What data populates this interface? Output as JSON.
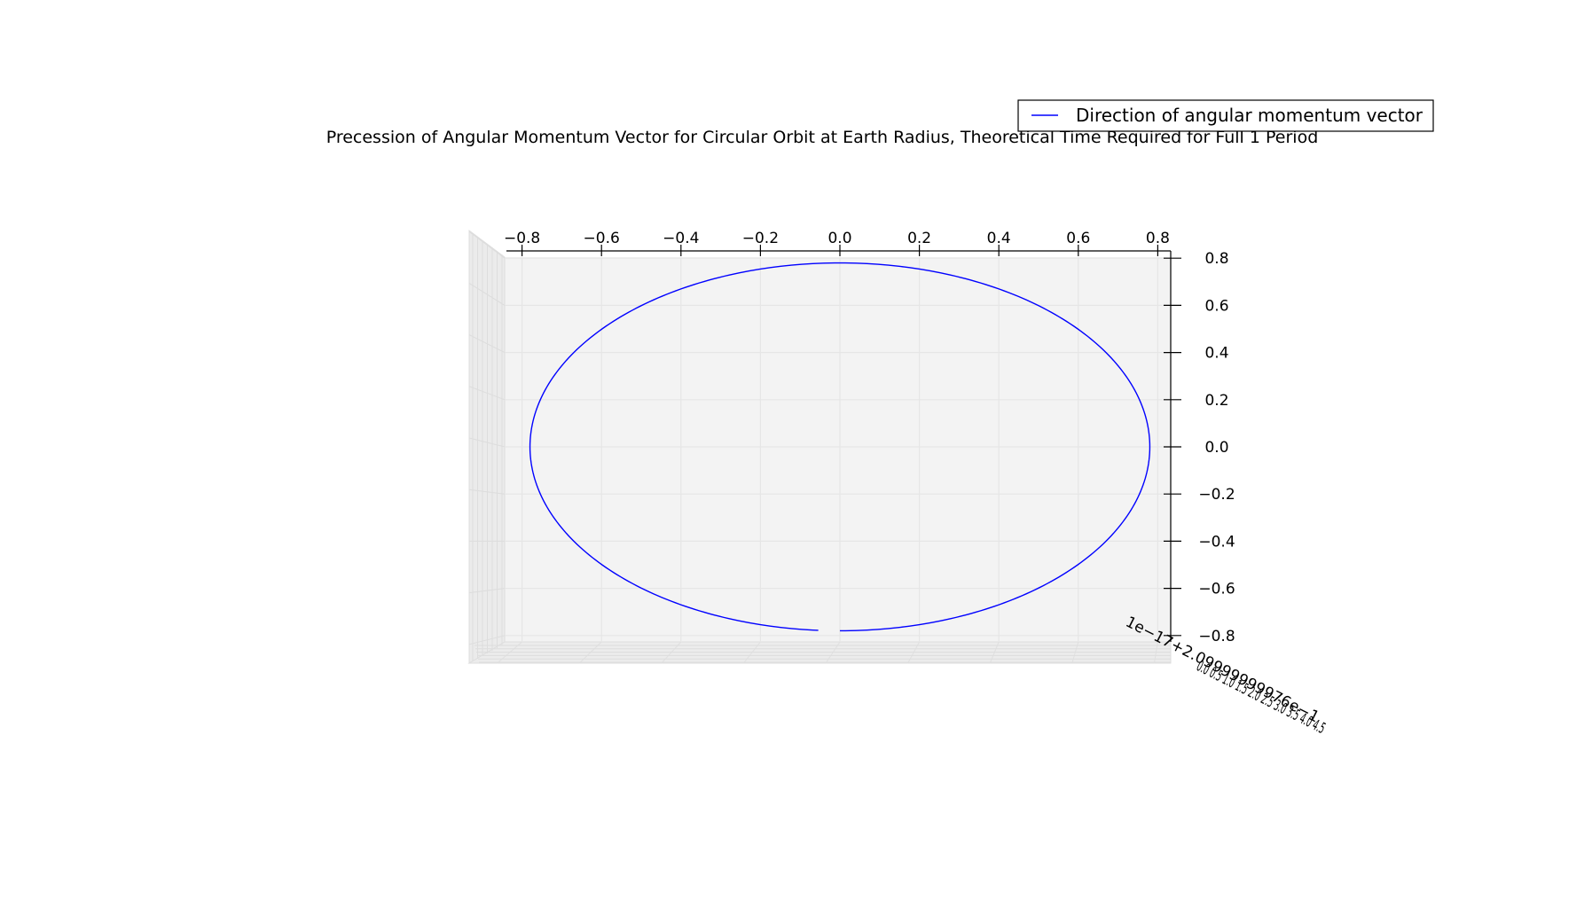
{
  "chart_data": {
    "type": "line",
    "projection": "3d",
    "title": "Precession of Angular Momentum Vector for Circular Orbit at Earth Radius, Theoretical Time Required for Full 1 Period",
    "xlabel": "",
    "ylabel": "",
    "zlabel": "",
    "xlim": [
      -0.84,
      0.84
    ],
    "zlim": [
      -0.84,
      0.84
    ],
    "xticks": [
      "−0.8",
      "−0.6",
      "−0.4",
      "−0.2",
      "0.0",
      "0.2",
      "0.4",
      "0.6",
      "0.8"
    ],
    "xtick_values": [
      -0.8,
      -0.6,
      -0.4,
      -0.2,
      0.0,
      0.2,
      0.4,
      0.6,
      0.8
    ],
    "zticks": [
      "0.8",
      "0.6",
      "0.4",
      "0.2",
      "0.0",
      "−0.2",
      "−0.4",
      "−0.6",
      "−0.8"
    ],
    "ztick_values": [
      0.8,
      0.6,
      0.4,
      0.2,
      0.0,
      -0.2,
      -0.4,
      -0.6,
      -0.8
    ],
    "y_axis_offset_text": "1e−17+2.09999999976e−1",
    "y_axis_overlapping_ticks": "0.0 0.5 1.0 1.5 2.0 2.5 3.0 3.5 4.0 4.5",
    "grid": true,
    "legend_placement": "upper-right",
    "series": [
      {
        "name": "Direction of angular momentum vector",
        "color": "#0000ff",
        "shape": "circle",
        "radius": 0.78,
        "y": 0.209999999976,
        "gap_start_angle_deg": 266,
        "gap_end_angle_deg": 270
      }
    ],
    "colors": {
      "pane": "#f2f2f2",
      "grid": "#e6e6e6",
      "series": "#0000ff"
    }
  }
}
